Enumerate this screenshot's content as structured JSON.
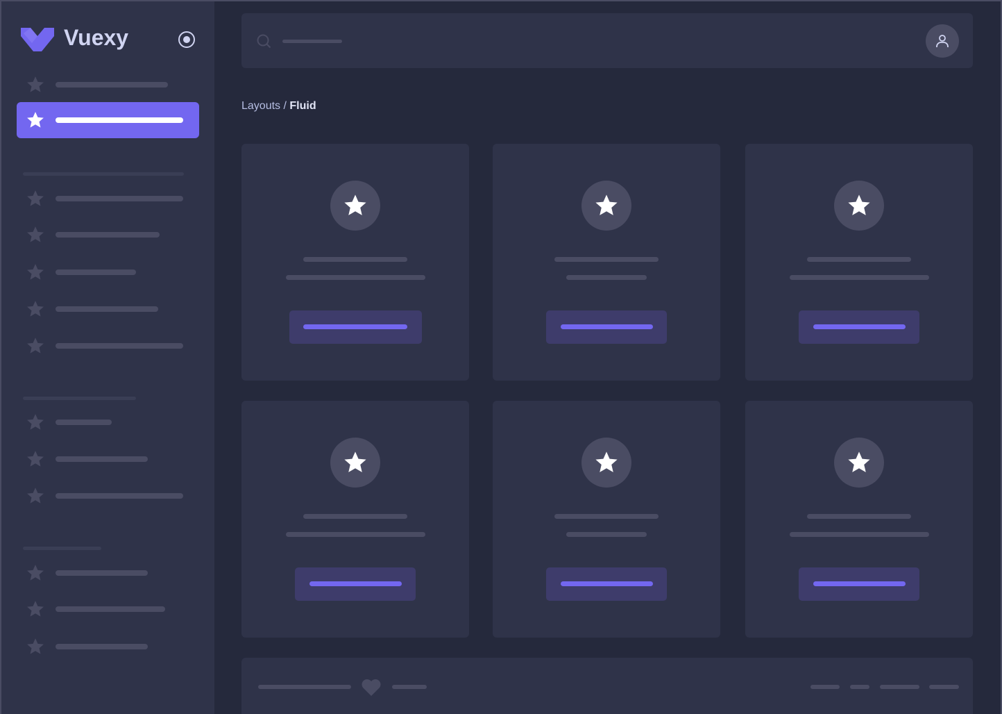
{
  "app": {
    "brand": "Vuexy",
    "accent": "#7367f0"
  },
  "breadcrumb": {
    "parent": "Layouts",
    "separator": " / ",
    "current": "Fluid"
  },
  "icons": {
    "logo": "vuexy-logo",
    "toggle": "radio-circle-icon",
    "nav": "star-icon",
    "search": "search-icon",
    "user": "user-icon",
    "card": "star-icon",
    "footer": "heart-icon"
  }
}
